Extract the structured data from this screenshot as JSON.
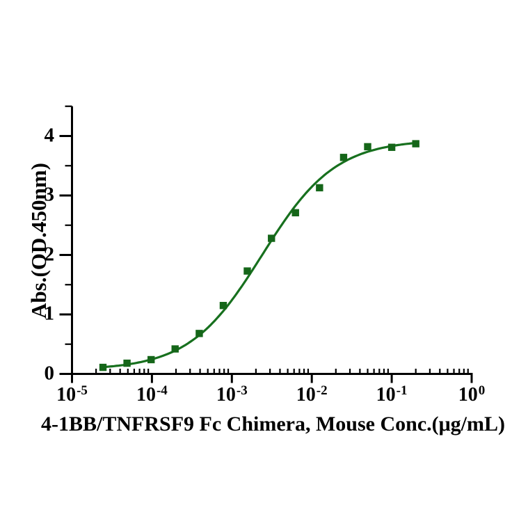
{
  "chart_data": {
    "type": "scatter",
    "title": "",
    "xlabel": "4-1BB/TNFRSF9 Fc Chimera, Mouse Conc.(μg/mL)",
    "ylabel": "Abs.(OD.450nm)",
    "xscale": "log",
    "grid": false,
    "legend": "none",
    "x": [
      2.44e-05,
      4.88e-05,
      9.77e-05,
      0.000195,
      0.000391,
      0.000781,
      0.00156,
      0.00313,
      0.00625,
      0.0125,
      0.025,
      0.05,
      0.1,
      0.2
    ],
    "y": [
      0.11,
      0.18,
      0.24,
      0.42,
      0.68,
      1.15,
      1.73,
      2.28,
      2.71,
      3.13,
      3.64,
      3.82,
      3.81,
      3.87
    ],
    "xlim": [
      1e-05,
      1
    ],
    "ylim": [
      0,
      4.5
    ],
    "x_major_tick_exponents": [
      -5,
      -4,
      -3,
      -2,
      -1,
      0
    ],
    "x_minor_tick_multiples": [
      2,
      3,
      4,
      5,
      6,
      7,
      8,
      9
    ],
    "y_major_ticks": [
      0,
      1,
      2,
      3,
      4
    ],
    "y_minor_ticks": [
      0.5,
      1.5,
      2.5,
      3.5,
      4.5
    ],
    "fit_curve": {
      "model": "4PL",
      "bottom": 0.065,
      "top": 3.94,
      "ec50": 0.0024,
      "hill": 0.95
    },
    "marker": "square",
    "colors": {
      "curve": "#17701e",
      "marker": "#156619",
      "axis": "#000000",
      "text": "#000000",
      "background": "#ffffff"
    }
  }
}
